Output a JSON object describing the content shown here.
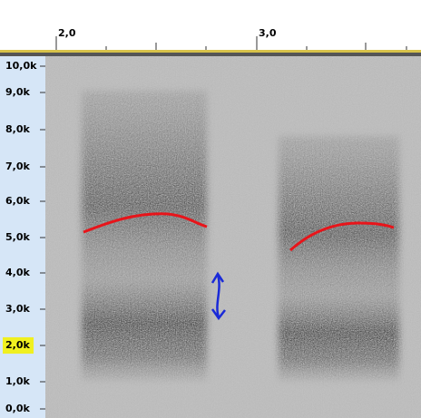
{
  "time_ruler": {
    "labels": [
      "2,0",
      "3,0"
    ]
  },
  "frequency_axis": {
    "labels": [
      "10,0k",
      "9,0k",
      "8,0k",
      "7,0k",
      "6,0k",
      "5,0k",
      "4,0k",
      "3,0k",
      "2,0k",
      "1,0k",
      "0,0k"
    ],
    "highlighted": "2,0k"
  }
}
